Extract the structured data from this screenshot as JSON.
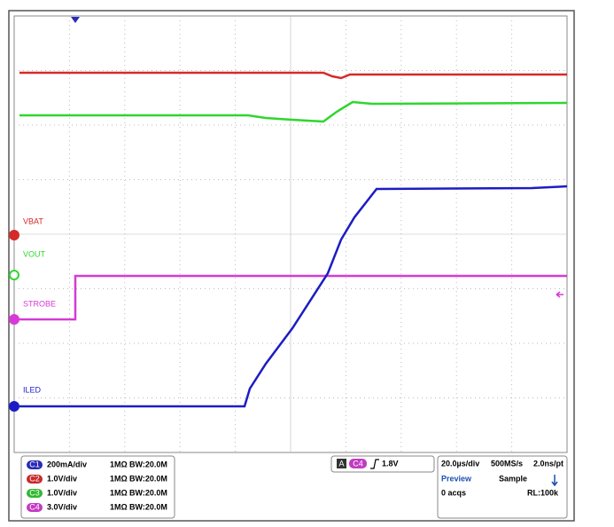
{
  "traces": [
    {
      "label": "VBAT",
      "color": "#d42a2a"
    },
    {
      "label": "VOUT",
      "color": "#2fd62f"
    },
    {
      "label": "STROBE",
      "color": "#d63ad6"
    },
    {
      "label": "ILED",
      "color": "#1c1cc4"
    }
  ],
  "channels": [
    {
      "badge": "C1",
      "scale": "200mA/div",
      "impedance": "1MΩ",
      "bandwidth": "BW:20.0M",
      "color": "#2a2ab8"
    },
    {
      "badge": "C2",
      "scale": "1.0V/div",
      "impedance": "1MΩ",
      "bandwidth": "BW:20.0M",
      "color": "#c82a2a"
    },
    {
      "badge": "C3",
      "scale": "1.0V/div",
      "impedance": "1MΩ",
      "bandwidth": "BW:20.0M",
      "color": "#2fb82f"
    },
    {
      "badge": "C4",
      "scale": "3.0V/div",
      "impedance": "1MΩ",
      "bandwidth": "BW:20.0M",
      "color": "#c23ac2"
    }
  ],
  "trigger": {
    "mode": "A",
    "source": "C4",
    "level": "1.8V"
  },
  "acquisition": {
    "time_div": "20.0µs/div",
    "sample_rate": "500MS/s",
    "resolution": "2.0ns/pt",
    "state": "Preview",
    "mode": "Sample",
    "acqs": "0 acqs",
    "record_length": "RL:100k"
  }
}
